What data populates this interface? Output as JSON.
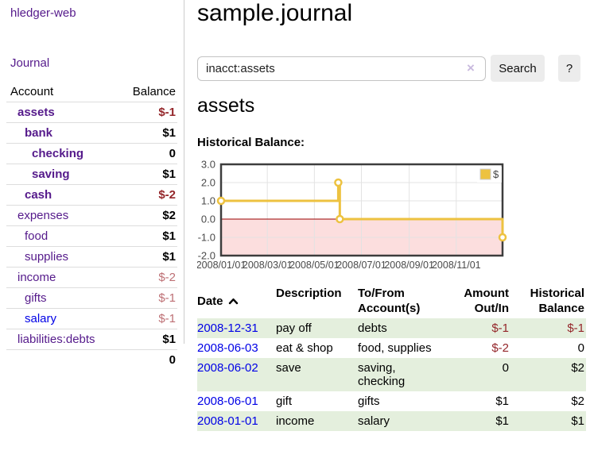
{
  "colors": {
    "accent_gold": "#edc240",
    "row_stripe_green": "#e4efdd",
    "negative_strong": "#94262a",
    "negative_soft": "#bd6f74",
    "link_purple": "#551a8b",
    "link_blue": "#0000e6",
    "negative_region_pink": "#fcdede",
    "zero_line_red": "#990000"
  },
  "sidebar": {
    "brand": "hledger-web",
    "nav": {
      "journal": "Journal"
    },
    "accounts_table": {
      "col_account": "Account",
      "col_balance": "Balance"
    },
    "accounts": [
      {
        "name": "assets",
        "depth": 1,
        "in_view": true,
        "balance": "$-1"
      },
      {
        "name": "bank",
        "depth": 2,
        "in_view": true,
        "balance": "$1"
      },
      {
        "name": "checking",
        "depth": 3,
        "in_view": true,
        "balance": "0"
      },
      {
        "name": "saving",
        "depth": 3,
        "in_view": true,
        "balance": "$1"
      },
      {
        "name": "cash",
        "depth": 2,
        "in_view": true,
        "balance": "$-2"
      },
      {
        "name": "expenses",
        "depth": 1,
        "in_view": false,
        "balance": "$2"
      },
      {
        "name": "food",
        "depth": 2,
        "in_view": false,
        "balance": "$1"
      },
      {
        "name": "supplies",
        "depth": 2,
        "in_view": false,
        "balance": "$1"
      },
      {
        "name": "income",
        "depth": 1,
        "in_view": false,
        "balance": "$-2"
      },
      {
        "name": "gifts",
        "depth": 2,
        "in_view": false,
        "balance": "$-1"
      },
      {
        "name": "salary",
        "depth": 2,
        "in_view": false,
        "balance": "$-1",
        "unvisited": true
      },
      {
        "name": "liabilities:debts",
        "depth": 1,
        "in_view": false,
        "balance": "$1"
      }
    ],
    "total": "0"
  },
  "main": {
    "title": "sample.journal",
    "search": {
      "value": "inacct:assets",
      "clear_icon": "×",
      "search_button": "Search",
      "help_button": "?"
    },
    "account_heading": "assets",
    "chart_title": "Historical Balance:"
  },
  "chart_data": {
    "type": "line",
    "title": "Historical Balance",
    "series": [
      {
        "name": "$",
        "color": "#edc240",
        "style": "step-after",
        "points": [
          {
            "date": "2008-01-01",
            "value": 1
          },
          {
            "date": "2008-06-01",
            "value": 2
          },
          {
            "date": "2008-06-03",
            "value": 0
          },
          {
            "date": "2008-12-31",
            "value": -1
          }
        ]
      }
    ],
    "x_domain": [
      "2008-01-01",
      "2008-12-31"
    ],
    "x_ticks": [
      {
        "date": "2008-01-01",
        "label": "2008/01/01"
      },
      {
        "date": "2008-03-01",
        "label": "2008/03/01"
      },
      {
        "date": "2008-05-01",
        "label": "2008/05/01"
      },
      {
        "date": "2008-07-01",
        "label": "2008/07/01"
      },
      {
        "date": "2008-09-01",
        "label": "2008/09/01"
      },
      {
        "date": "2008-11-01",
        "label": "2008/11/01"
      }
    ],
    "y_ticks": [
      {
        "value": 3,
        "label": "3.0"
      },
      {
        "value": 2,
        "label": "2.0"
      },
      {
        "value": 1,
        "label": "1.0"
      },
      {
        "value": 0,
        "label": "0.0"
      },
      {
        "value": -1,
        "label": "-1.0"
      },
      {
        "value": -2,
        "label": "-2.0"
      }
    ],
    "ylim": [
      -2,
      3
    ],
    "grid": true,
    "legend": {
      "label": "$",
      "position": "top-right"
    },
    "negative_region_color": "#fcdede",
    "zero_line_color": "#990000"
  },
  "register": {
    "headers": {
      "date": "Date",
      "description": "Description",
      "tofrom": "To/From\nAccount(s)",
      "amount": "Amount\nOut/In",
      "balance": "Historical\nBalance"
    },
    "sort_icon": "chevron-up-icon",
    "rows": [
      {
        "date": "2008-12-31",
        "description": "pay off",
        "accounts": "debts",
        "amount": "$-1",
        "balance": "$-1"
      },
      {
        "date": "2008-06-03",
        "description": "eat & shop",
        "accounts": "food, supplies",
        "amount": "$-2",
        "balance": "0"
      },
      {
        "date": "2008-06-02",
        "description": "save",
        "accounts": "saving, checking",
        "amount": "0",
        "balance": "$2"
      },
      {
        "date": "2008-06-01",
        "description": "gift",
        "accounts": "gifts",
        "amount": "$1",
        "balance": "$2"
      },
      {
        "date": "2008-01-01",
        "description": "income",
        "accounts": "salary",
        "amount": "$1",
        "balance": "$1"
      }
    ]
  }
}
